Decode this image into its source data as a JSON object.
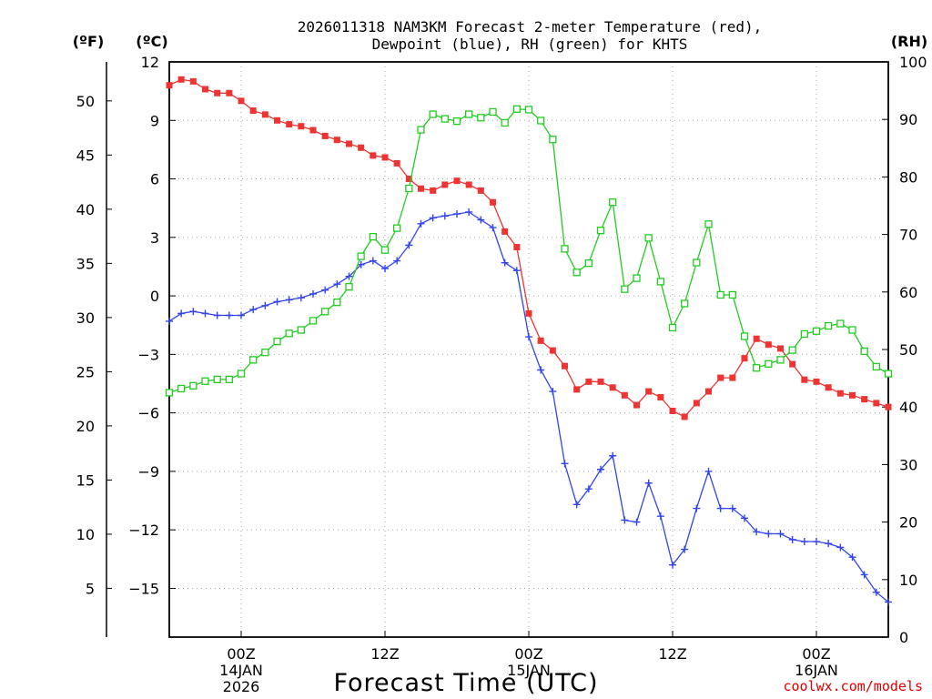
{
  "chart_data": {
    "type": "line",
    "title": [
      "2026011318 NAM3KM Forecast 2-meter Temperature (red),",
      "Dewpoint (blue), RH (green) for KHTS"
    ],
    "xlabel": "Forecast Time (UTC)",
    "left_outer_unit": "(ºF)",
    "left_inner_unit": "(ºC)",
    "right_unit": "(RH)",
    "x_unit": "forecast hour from 2026-01-13 18Z",
    "xlim": [
      0,
      60
    ],
    "x_ticks": [
      {
        "x": 6,
        "lines": [
          "00Z",
          "14JAN",
          "2026"
        ]
      },
      {
        "x": 18,
        "lines": [
          "12Z"
        ]
      },
      {
        "x": 30,
        "lines": [
          "00Z",
          "15JAN"
        ]
      },
      {
        "x": 42,
        "lines": [
          "12Z"
        ]
      },
      {
        "x": 54,
        "lines": [
          "00Z",
          "16JAN"
        ]
      }
    ],
    "y_celsius": {
      "lim": [
        -17.5,
        12
      ],
      "ticks": [
        12,
        9,
        6,
        3,
        0,
        -3,
        -6,
        -9,
        -12,
        -15
      ],
      "labels": [
        "12",
        "9",
        "6",
        "3",
        "0",
        "−3",
        "−6",
        "−9",
        "−12",
        "−15"
      ]
    },
    "y_fahrenheit": {
      "ticks": [
        50,
        45,
        40,
        35,
        30,
        25,
        20,
        15,
        10,
        5
      ],
      "labels": [
        "50",
        "45",
        "40",
        "35",
        "30",
        "25",
        "20",
        "15",
        "10",
        "5"
      ]
    },
    "y_rh": {
      "lim": [
        0,
        100
      ],
      "ticks": [
        100,
        90,
        80,
        70,
        60,
        50,
        40,
        30,
        20,
        10,
        0
      ],
      "labels": [
        "100",
        "90",
        "80",
        "70",
        "60",
        "50",
        "40",
        "30",
        "20",
        "10",
        "0"
      ]
    },
    "series": [
      {
        "name": "2-meter Temperature",
        "axis": "celsius",
        "color": "#ee3333",
        "marker": "filled-square",
        "x": [
          0,
          1,
          2,
          3,
          4,
          5,
          6,
          7,
          8,
          9,
          10,
          11,
          12,
          13,
          14,
          15,
          16,
          17,
          18,
          19,
          20,
          21,
          22,
          23,
          24,
          25,
          26,
          27,
          28,
          29,
          30,
          31,
          32,
          33,
          34,
          35,
          36,
          37,
          38,
          39,
          40,
          41,
          42,
          43,
          44,
          45,
          46,
          47,
          48,
          49,
          50,
          51,
          52,
          53,
          54,
          55,
          56,
          57,
          58,
          59,
          60
        ],
        "values": [
          10.8,
          11.1,
          11.0,
          10.6,
          10.4,
          10.4,
          10.0,
          9.5,
          9.3,
          9.0,
          8.8,
          8.7,
          8.5,
          8.2,
          8.0,
          7.8,
          7.6,
          7.2,
          7.1,
          6.8,
          6.0,
          5.5,
          5.4,
          5.7,
          5.9,
          5.7,
          5.4,
          4.8,
          3.3,
          2.5,
          -0.9,
          -2.3,
          -2.8,
          -3.6,
          -4.8,
          -4.4,
          -4.4,
          -4.7,
          -5.1,
          -5.6,
          -4.9,
          -5.2,
          -5.9,
          -6.2,
          -5.5,
          -4.9,
          -4.2,
          -4.2,
          -3.2,
          -2.2,
          -2.5,
          -2.7,
          -3.5,
          -4.3,
          -4.4,
          -4.7,
          -5.0,
          -5.1,
          -5.3,
          -5.5,
          -5.7
        ]
      },
      {
        "name": "Dewpoint",
        "axis": "celsius",
        "color": "#3344ee",
        "marker": "plus",
        "x": [
          0,
          1,
          2,
          3,
          4,
          5,
          6,
          7,
          8,
          9,
          10,
          11,
          12,
          13,
          14,
          15,
          16,
          17,
          18,
          19,
          20,
          21,
          22,
          23,
          24,
          25,
          26,
          27,
          28,
          29,
          30,
          31,
          32,
          33,
          34,
          35,
          36,
          37,
          38,
          39,
          40,
          41,
          42,
          43,
          44,
          45,
          46,
          47,
          48,
          49,
          50,
          51,
          52,
          53,
          54,
          55,
          56,
          57,
          58,
          59,
          60
        ],
        "values": [
          -1.3,
          -0.9,
          -0.8,
          -0.9,
          -1.0,
          -1.0,
          -1.0,
          -0.7,
          -0.5,
          -0.3,
          -0.2,
          -0.1,
          0.1,
          0.3,
          0.6,
          1.0,
          1.6,
          1.8,
          1.4,
          1.8,
          2.6,
          3.7,
          4.0,
          4.1,
          4.2,
          4.3,
          3.9,
          3.5,
          1.7,
          1.3,
          -2.1,
          -3.8,
          -4.9,
          -8.6,
          -10.7,
          -9.9,
          -8.9,
          -8.2,
          -11.5,
          -11.6,
          -9.6,
          -11.3,
          -13.8,
          -13.0,
          -10.9,
          -9.0,
          -10.9,
          -10.9,
          -11.4,
          -12.1,
          -12.2,
          -12.2,
          -12.5,
          -12.6,
          -12.6,
          -12.7,
          -12.9,
          -13.4,
          -14.3,
          -15.2,
          -15.7
        ]
      },
      {
        "name": "RH",
        "axis": "rh",
        "color": "#22cc22",
        "marker": "open-square",
        "x": [
          0,
          1,
          2,
          3,
          4,
          5,
          6,
          7,
          8,
          9,
          10,
          11,
          12,
          13,
          14,
          15,
          16,
          17,
          18,
          19,
          20,
          21,
          22,
          23,
          24,
          25,
          26,
          27,
          28,
          29,
          30,
          31,
          32,
          33,
          34,
          35,
          36,
          37,
          38,
          39,
          40,
          41,
          42,
          43,
          44,
          45,
          46,
          47,
          48,
          49,
          50,
          51,
          52,
          53,
          54,
          55,
          56,
          57,
          58,
          59,
          60
        ],
        "values": [
          42.5,
          43.2,
          43.7,
          44.5,
          44.8,
          44.8,
          45.8,
          48.2,
          49.5,
          51.4,
          52.8,
          53.4,
          55.0,
          56.6,
          58.2,
          60.9,
          66.2,
          69.6,
          67.3,
          71.1,
          78.0,
          88.2,
          90.9,
          90.1,
          89.7,
          90.9,
          90.3,
          91.3,
          89.4,
          91.8,
          91.7,
          89.8,
          86.5,
          67.5,
          63.4,
          65.0,
          70.7,
          75.6,
          60.5,
          62.4,
          69.4,
          61.8,
          53.8,
          58.0,
          65.1,
          71.8,
          59.5,
          59.5,
          52.3,
          46.8,
          47.5,
          48.2,
          49.9,
          52.7,
          53.2,
          54.1,
          54.5,
          53.4,
          49.7,
          47.0,
          45.8
        ]
      }
    ]
  },
  "credit": "coolwx.com/models"
}
